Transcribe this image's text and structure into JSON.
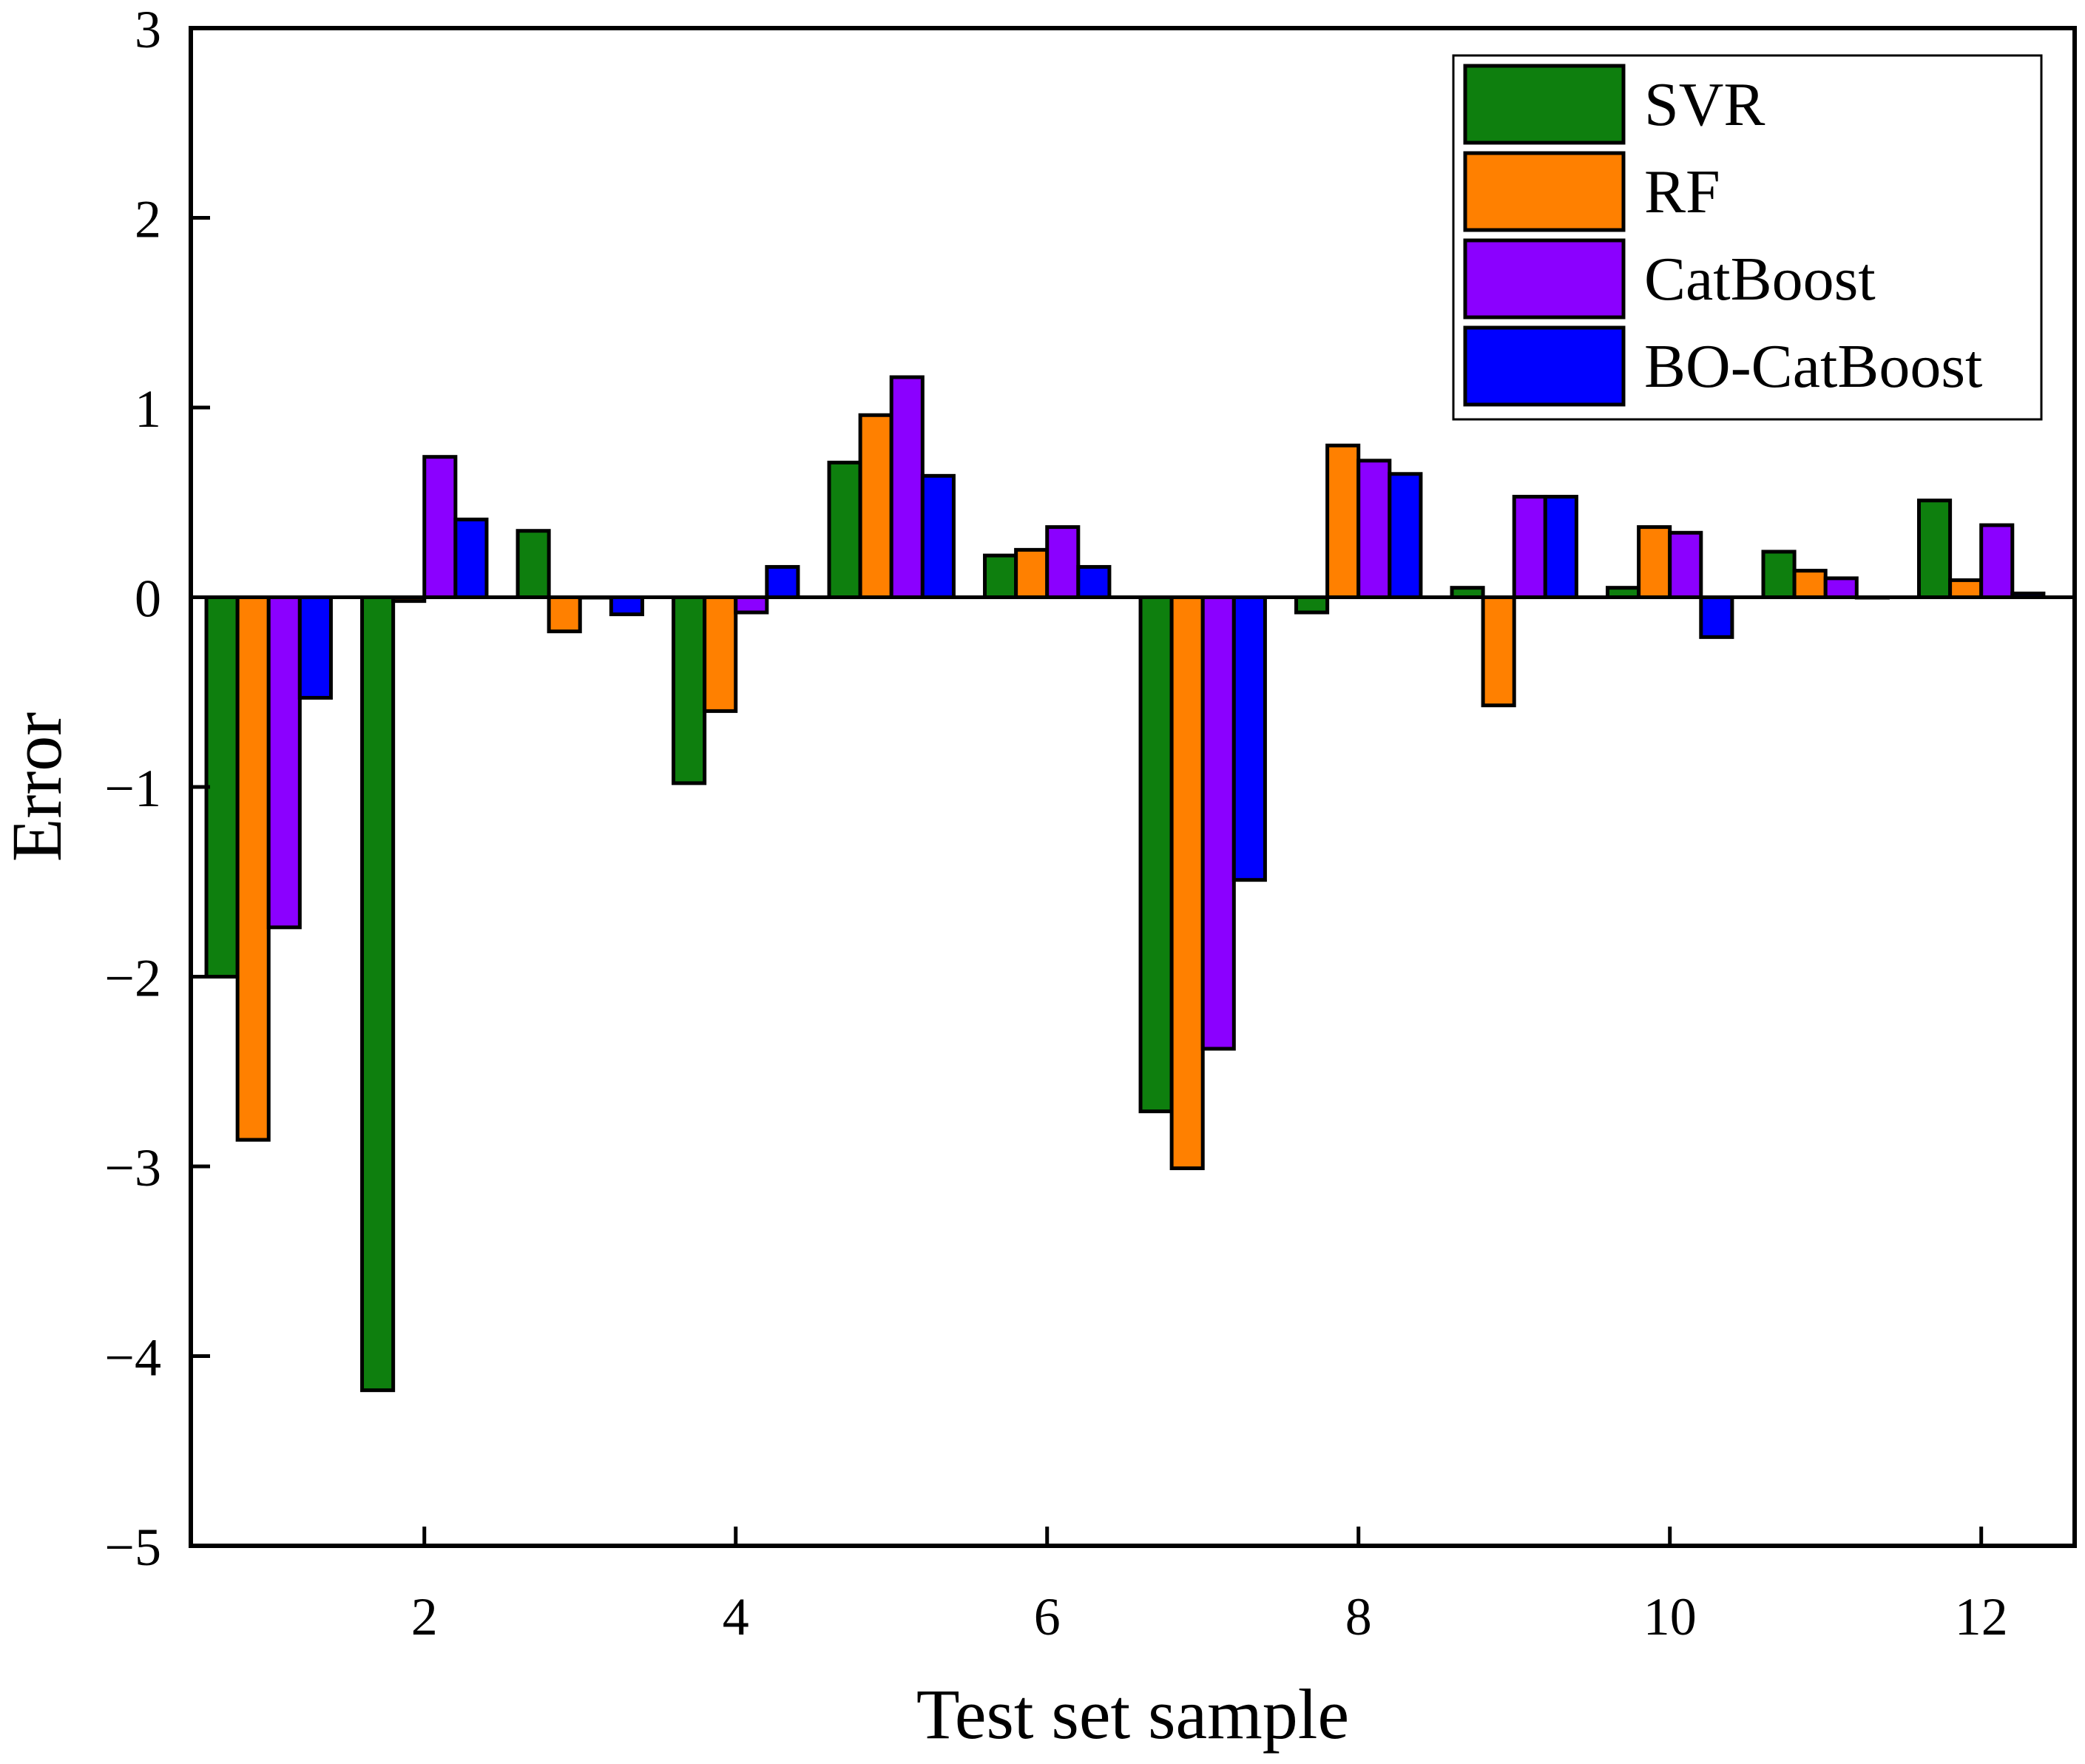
{
  "chart_data": {
    "type": "bar",
    "title": "",
    "xlabel": "Test set sample",
    "ylabel": "Error",
    "ylim": [
      -5,
      3
    ],
    "yticks": [
      -5,
      -4,
      -3,
      -2,
      -1,
      0,
      1,
      2,
      3
    ],
    "ytick_labels": [
      "−5",
      "−4",
      "−3",
      "−2",
      "−1",
      "0",
      "1",
      "2",
      "3"
    ],
    "xlim": [
      0.5,
      12.6
    ],
    "xticks": [
      2,
      4,
      6,
      8,
      10,
      12
    ],
    "xtick_labels": [
      "2",
      "4",
      "6",
      "8",
      "10",
      "12"
    ],
    "categories": [
      1,
      2,
      3,
      4,
      5,
      6,
      7,
      8,
      9,
      10,
      11,
      12
    ],
    "legend_position": "top-right",
    "series": [
      {
        "name": "SVR",
        "color": "#0e7f0e",
        "values": [
          -2.0,
          -4.18,
          0.35,
          -0.98,
          0.71,
          0.22,
          -2.71,
          -0.08,
          0.05,
          0.05,
          0.24,
          0.51
        ]
      },
      {
        "name": "RF",
        "color": "#ff8000",
        "values": [
          -2.86,
          -0.02,
          -0.18,
          -0.6,
          0.96,
          0.25,
          -3.01,
          0.8,
          -0.57,
          0.37,
          0.14,
          0.09
        ]
      },
      {
        "name": "CatBoost",
        "color": "#8b00ff",
        "values": [
          -1.74,
          0.74,
          0.0,
          -0.08,
          1.16,
          0.37,
          -2.38,
          0.72,
          0.53,
          0.34,
          0.1,
          0.38
        ]
      },
      {
        "name": "BO-CatBoost",
        "color": "#0000ff",
        "values": [
          -0.53,
          0.41,
          -0.09,
          0.16,
          0.64,
          0.16,
          -1.49,
          0.65,
          0.53,
          -0.21,
          0.0,
          0.02
        ]
      }
    ]
  }
}
